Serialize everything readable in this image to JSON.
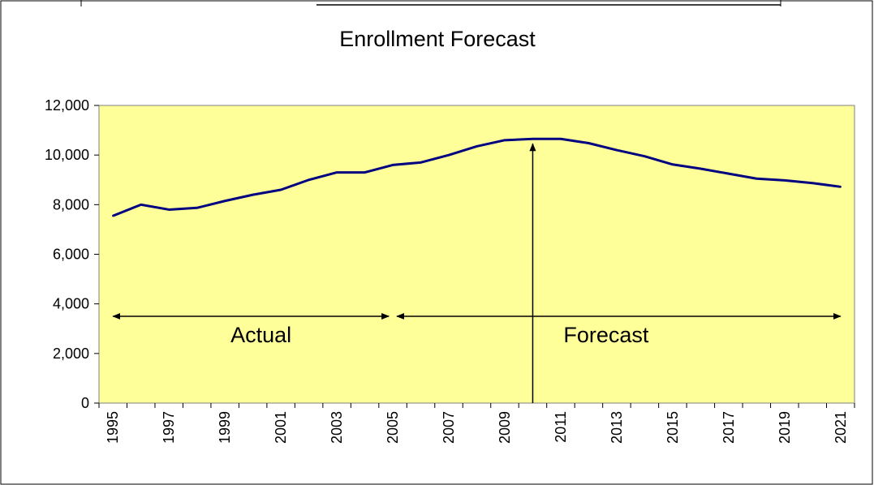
{
  "chart_data": {
    "type": "line",
    "title": "Enrollment Forecast",
    "xlabel": "",
    "ylabel": "",
    "ylim": [
      0,
      12000
    ],
    "yticks": [
      "0",
      "2,000",
      "4,000",
      "6,000",
      "8,000",
      "10,000",
      "12,000"
    ],
    "xticks": [
      "1995",
      "1997",
      "1999",
      "2001",
      "2003",
      "2005",
      "2007",
      "2009",
      "2011",
      "2013",
      "2015",
      "2017",
      "2019",
      "2021"
    ],
    "x": [
      1995,
      1996,
      1997,
      1998,
      1999,
      2000,
      2001,
      2002,
      2003,
      2004,
      2005,
      2006,
      2007,
      2008,
      2009,
      2010,
      2011,
      2012,
      2013,
      2014,
      2015,
      2016,
      2017,
      2018,
      2019,
      2020,
      2021
    ],
    "series": [
      {
        "values": [
          7550,
          8000,
          7800,
          7870,
          8150,
          8400,
          8600,
          9000,
          9300,
          9300,
          9600,
          9700,
          10000,
          10350,
          10600,
          10650,
          10650,
          10480,
          10200,
          9950,
          9620,
          9450,
          9250,
          9050,
          8980,
          8870,
          8720
        ],
        "color": "#000080"
      }
    ],
    "grid": false,
    "plot_background": "#FFFF99",
    "annotations": [
      {
        "text": "Actual",
        "range": [
          1995,
          2005
        ]
      },
      {
        "text": "Forecast",
        "range": [
          2005,
          2021
        ]
      }
    ],
    "divider_year": 2010
  }
}
